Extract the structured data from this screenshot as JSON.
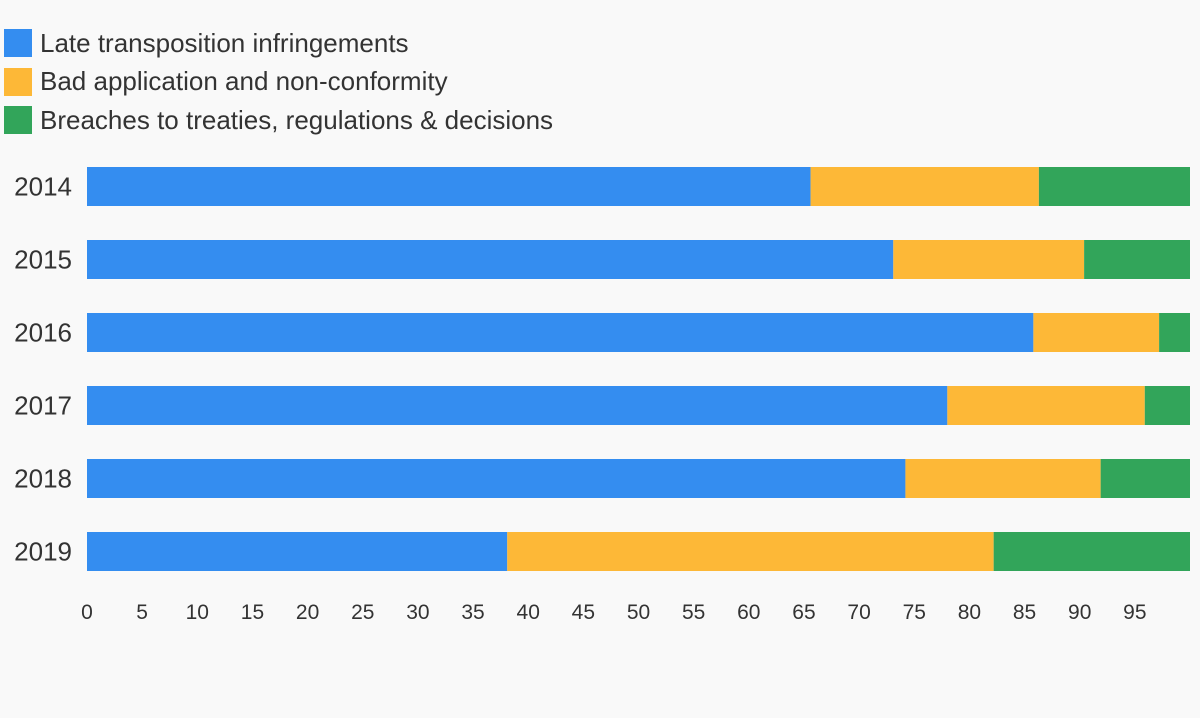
{
  "chart_data": {
    "type": "bar",
    "orientation": "horizontal",
    "stacked": true,
    "legend_position": "top-left",
    "grid": false,
    "xlim": [
      0,
      100
    ],
    "x_ticks": [
      0,
      5,
      10,
      15,
      20,
      25,
      30,
      35,
      40,
      45,
      50,
      55,
      60,
      65,
      70,
      75,
      80,
      85,
      90,
      95
    ],
    "categories": [
      "2014",
      "2015",
      "2016",
      "2017",
      "2018",
      "2019"
    ],
    "series": [
      {
        "name": "Late transposition infringements",
        "color": "#348df0",
        "values": [
          65.6,
          73.1,
          85.8,
          78.0,
          74.2,
          38.1
        ]
      },
      {
        "name": "Bad application and non-conformity",
        "color": "#fdb837",
        "values": [
          20.7,
          17.3,
          11.4,
          17.9,
          17.7,
          44.1
        ]
      },
      {
        "name": "Breaches to treaties, regulations & decisions",
        "color": "#32a55a",
        "values": [
          13.7,
          9.6,
          2.8,
          4.1,
          8.1,
          17.8
        ]
      }
    ]
  }
}
